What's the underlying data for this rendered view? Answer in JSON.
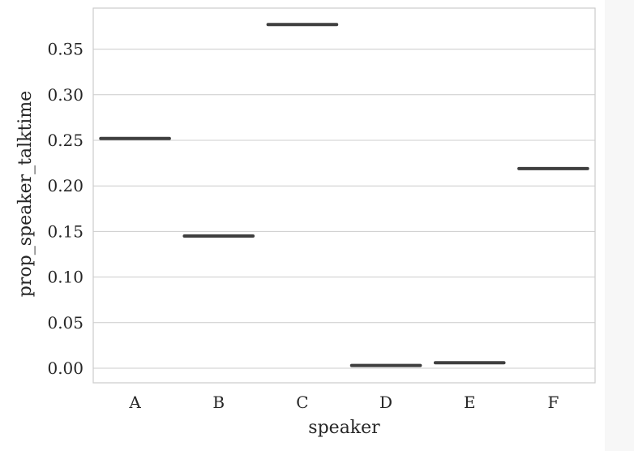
{
  "chart_data": {
    "type": "box",
    "title": "",
    "xlabel": "speaker",
    "ylabel": "prop_speaker_talktime",
    "categories": [
      "A",
      "B",
      "C",
      "D",
      "E",
      "F"
    ],
    "values": [
      0.252,
      0.145,
      0.377,
      0.003,
      0.006,
      0.219
    ],
    "ylim": [
      -0.016,
      0.395
    ],
    "yticks": [
      0.0,
      0.05,
      0.1,
      0.15,
      0.2,
      0.25,
      0.3,
      0.35
    ],
    "ytick_labels": [
      "0.00",
      "0.05",
      "0.10",
      "0.15",
      "0.20",
      "0.25",
      "0.30",
      "0.35"
    ],
    "grid": "horizontal",
    "legend": "none",
    "colors": {
      "median_line": "#3f3f3f",
      "grid": "#cccccc",
      "axes_border": "#cccccc",
      "text": "#262626"
    }
  }
}
